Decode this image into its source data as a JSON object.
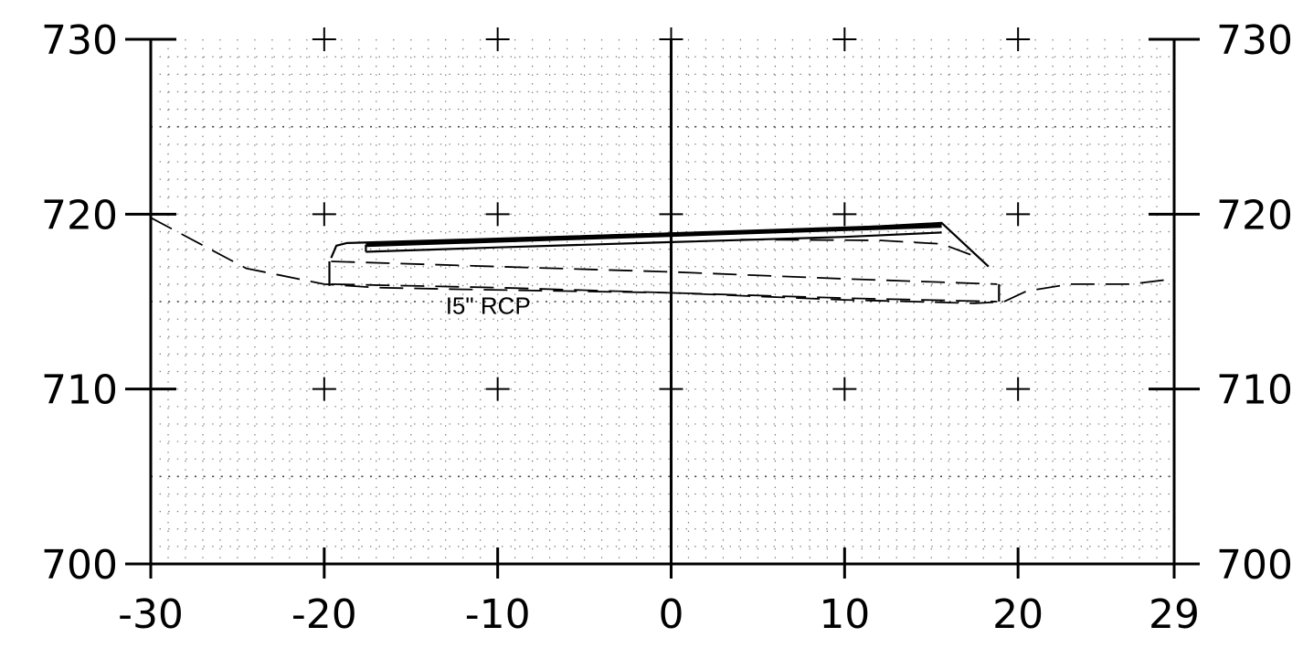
{
  "chart_data": {
    "type": "line",
    "title": "",
    "xlabel": "",
    "ylabel": "",
    "xlim": [
      -30,
      29
    ],
    "ylim": [
      700,
      730
    ],
    "x_ticks": [
      {
        "value": -30,
        "label": "-30"
      },
      {
        "value": -20,
        "label": "-20"
      },
      {
        "value": -10,
        "label": "-10"
      },
      {
        "value": 0,
        "label": "0"
      },
      {
        "value": 10,
        "label": "10"
      },
      {
        "value": 20,
        "label": "20"
      },
      {
        "value": 29,
        "label": "29"
      }
    ],
    "y_ticks": [
      {
        "value": 700,
        "label": "700"
      },
      {
        "value": 710,
        "label": "710"
      },
      {
        "value": 720,
        "label": "720"
      },
      {
        "value": 730,
        "label": "730"
      }
    ],
    "grid": true,
    "grid_style": "dotted",
    "colors": {
      "ink": "#000000",
      "background": "#ffffff"
    },
    "series": [
      {
        "style": "dashed",
        "points": [
          [
            -30,
            719.8
          ],
          [
            -24.5,
            716.9
          ],
          [
            -20,
            716.0
          ],
          [
            -17,
            715.8
          ],
          [
            -12,
            715.7
          ],
          [
            -6,
            715.6
          ],
          [
            0,
            715.5
          ],
          [
            5,
            715.3
          ],
          [
            10,
            715.1
          ],
          [
            14,
            715.0
          ],
          [
            17.5,
            714.9
          ],
          [
            19.2,
            715.0
          ],
          [
            20.5,
            715.6
          ],
          [
            23,
            716.0
          ],
          [
            26.5,
            716.0
          ],
          [
            29,
            716.3
          ]
        ]
      },
      {
        "style": "solid-thin",
        "points": [
          [
            -19.6,
            717.5
          ],
          [
            -19.3,
            718.2
          ],
          [
            -18.7,
            718.35
          ],
          [
            -10,
            718.6
          ],
          [
            0,
            718.9
          ],
          [
            10,
            719.2
          ],
          [
            15.6,
            719.5
          ],
          [
            18.3,
            717.0
          ]
        ]
      },
      {
        "style": "solid-thick",
        "points": [
          [
            -17.6,
            718.25
          ],
          [
            15.6,
            719.35
          ]
        ]
      },
      {
        "style": "solid-thin",
        "points": [
          [
            -17.6,
            717.85
          ],
          [
            -10,
            718.1
          ],
          [
            0,
            718.4
          ],
          [
            10,
            718.7
          ],
          [
            15.6,
            718.95
          ]
        ]
      },
      {
        "style": "solid-thin",
        "points": [
          [
            -17.6,
            717.85
          ],
          [
            -17.6,
            718.25
          ]
        ]
      },
      {
        "style": "dashed",
        "points": [
          [
            -19.6,
            717.3
          ],
          [
            -10,
            717.0
          ],
          [
            0,
            716.7
          ],
          [
            10,
            716.3
          ],
          [
            18.8,
            716.0
          ]
        ]
      },
      {
        "style": "dashed",
        "points": [
          [
            -19.6,
            716.0
          ],
          [
            -10,
            715.8
          ],
          [
            0,
            715.5
          ],
          [
            10,
            715.2
          ],
          [
            18.8,
            715.0
          ]
        ]
      },
      {
        "style": "dashed",
        "points": [
          [
            4,
            718.55
          ],
          [
            12,
            718.5
          ],
          [
            15.6,
            718.3
          ],
          [
            17.5,
            717.6
          ]
        ]
      },
      {
        "style": "solid-thin",
        "points": [
          [
            18.9,
            715.0
          ],
          [
            18.9,
            716.0
          ]
        ]
      },
      {
        "style": "solid-thin",
        "points": [
          [
            -19.7,
            715.9
          ],
          [
            -19.7,
            717.3
          ]
        ]
      }
    ],
    "annotations": [
      {
        "text": "I5\" RCP",
        "x": -13,
        "y": 714.3
      }
    ]
  }
}
